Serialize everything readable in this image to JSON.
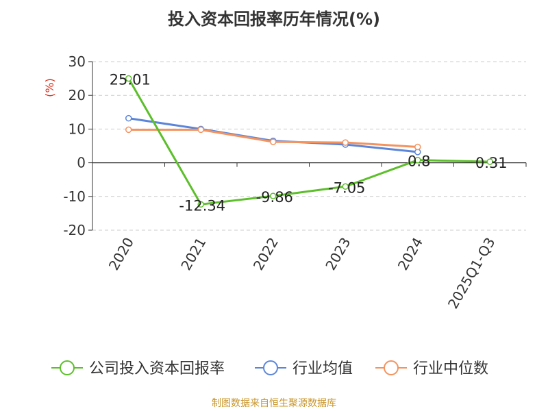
{
  "chart_data": {
    "type": "line",
    "title": "投入资本回报率历年情况(%)",
    "ylabel": "(%)",
    "xlabel": "",
    "categories": [
      "2020",
      "2021",
      "2022",
      "2023",
      "2024",
      "2025Q1-Q3"
    ],
    "ylim": [
      -20,
      30
    ],
    "yticks": [
      30,
      20,
      10,
      0,
      -10,
      -20
    ],
    "grid": true,
    "legend_position": "bottom",
    "series": [
      {
        "name": "公司投入资本回报率",
        "values": [
          25.01,
          -12.34,
          -9.86,
          -7.05,
          0.8,
          0.31
        ],
        "labels": [
          "25.01",
          "-12.34",
          "-9.86",
          "-7.05",
          "0.8",
          "0.31"
        ],
        "color": "#5cbf2a"
      },
      {
        "name": "行业均值",
        "values": [
          13.2,
          10.0,
          6.5,
          5.4,
          3.2,
          null
        ],
        "color": "#5b85d9"
      },
      {
        "name": "行业中位数",
        "values": [
          9.8,
          9.8,
          6.2,
          6.0,
          4.7,
          null
        ],
        "color": "#f4935e"
      }
    ]
  },
  "footer": "制图数据来自恒生聚源数据库"
}
